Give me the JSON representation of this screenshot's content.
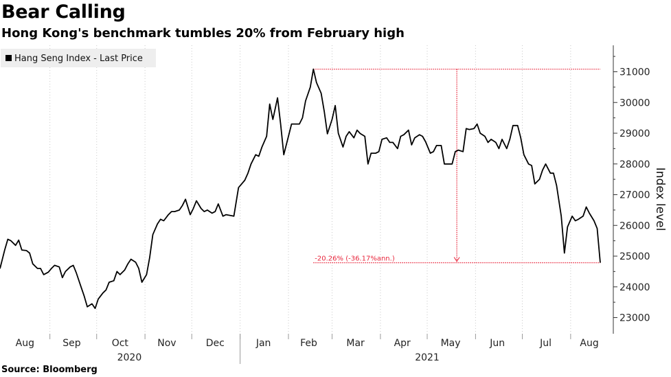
{
  "title": "Bear Calling",
  "subtitle": "Hong Kong's benchmark tumbles 20% from February high",
  "source": "Source: Bloomberg",
  "chart_data": {
    "type": "line",
    "legend": {
      "label": "Hang Seng Index - Last Price",
      "placement": "top-left"
    },
    "ylabel": "Index level",
    "ylim": [
      22500,
      31800
    ],
    "yticks": [
      23000,
      24000,
      25000,
      26000,
      27000,
      28000,
      29000,
      30000,
      31000
    ],
    "y_axis_side": "right",
    "grid": "vertical-dotted",
    "x_month_labels": [
      "Aug",
      "Sep",
      "Oct",
      "Nov",
      "Dec",
      "Jan",
      "Feb",
      "Mar",
      "Apr",
      "May",
      "Jun",
      "Jul",
      "Aug"
    ],
    "x_year_labels": [
      "2020",
      "2021"
    ],
    "colors": {
      "line": "#000000",
      "annotation": "#e8263c",
      "grid": "#c8c8c8"
    },
    "annotation": {
      "label": "-20.26% (-36.17%ann.)",
      "high": 31084,
      "low": 24786,
      "high_date": "2021-02-17",
      "low_date": "2021-08-20"
    },
    "series": [
      {
        "name": "Hang Seng Index - Last Price",
        "points": [
          [
            "2020-07-31",
            24595
          ],
          [
            "2020-08-03",
            25200
          ],
          [
            "2020-08-05",
            25550
          ],
          [
            "2020-08-07",
            25500
          ],
          [
            "2020-08-10",
            25350
          ],
          [
            "2020-08-12",
            25520
          ],
          [
            "2020-08-14",
            25200
          ],
          [
            "2020-08-17",
            25180
          ],
          [
            "2020-08-19",
            25100
          ],
          [
            "2020-08-21",
            24750
          ],
          [
            "2020-08-24",
            24600
          ],
          [
            "2020-08-26",
            24600
          ],
          [
            "2020-08-28",
            24400
          ],
          [
            "2020-08-31",
            24480
          ],
          [
            "2020-09-02",
            24600
          ],
          [
            "2020-09-04",
            24700
          ],
          [
            "2020-09-07",
            24650
          ],
          [
            "2020-09-09",
            24300
          ],
          [
            "2020-09-11",
            24500
          ],
          [
            "2020-09-14",
            24650
          ],
          [
            "2020-09-16",
            24700
          ],
          [
            "2020-09-18",
            24450
          ],
          [
            "2020-09-21",
            24000
          ],
          [
            "2020-09-23",
            23700
          ],
          [
            "2020-09-25",
            23350
          ],
          [
            "2020-09-28",
            23450
          ],
          [
            "2020-09-30",
            23300
          ],
          [
            "2020-10-02",
            23600
          ],
          [
            "2020-10-05",
            23800
          ],
          [
            "2020-10-07",
            23900
          ],
          [
            "2020-10-09",
            24150
          ],
          [
            "2020-10-12",
            24200
          ],
          [
            "2020-10-14",
            24500
          ],
          [
            "2020-10-16",
            24400
          ],
          [
            "2020-10-19",
            24550
          ],
          [
            "2020-10-21",
            24750
          ],
          [
            "2020-10-23",
            24900
          ],
          [
            "2020-10-26",
            24800
          ],
          [
            "2020-10-28",
            24600
          ],
          [
            "2020-10-30",
            24150
          ],
          [
            "2020-11-02",
            24400
          ],
          [
            "2020-11-04",
            24950
          ],
          [
            "2020-11-06",
            25700
          ],
          [
            "2020-11-09",
            26050
          ],
          [
            "2020-11-11",
            26200
          ],
          [
            "2020-11-13",
            26150
          ],
          [
            "2020-11-16",
            26350
          ],
          [
            "2020-11-18",
            26450
          ],
          [
            "2020-11-20",
            26450
          ],
          [
            "2020-11-23",
            26500
          ],
          [
            "2020-11-25",
            26650
          ],
          [
            "2020-11-27",
            26850
          ],
          [
            "2020-11-30",
            26350
          ],
          [
            "2020-12-02",
            26550
          ],
          [
            "2020-12-04",
            26800
          ],
          [
            "2020-12-07",
            26550
          ],
          [
            "2020-12-09",
            26450
          ],
          [
            "2020-12-11",
            26500
          ],
          [
            "2020-12-14",
            26400
          ],
          [
            "2020-12-16",
            26450
          ],
          [
            "2020-12-18",
            26700
          ],
          [
            "2020-12-21",
            26300
          ],
          [
            "2020-12-23",
            26350
          ],
          [
            "2020-12-28",
            26300
          ],
          [
            "2020-12-31",
            27230
          ],
          [
            "2021-01-04",
            27470
          ],
          [
            "2021-01-06",
            27700
          ],
          [
            "2021-01-08",
            28000
          ],
          [
            "2021-01-11",
            28300
          ],
          [
            "2021-01-13",
            28250
          ],
          [
            "2021-01-15",
            28550
          ],
          [
            "2021-01-18",
            28900
          ],
          [
            "2021-01-20",
            29950
          ],
          [
            "2021-01-22",
            29450
          ],
          [
            "2021-01-25",
            30150
          ],
          [
            "2021-01-27",
            29300
          ],
          [
            "2021-01-29",
            28300
          ],
          [
            "2021-02-01",
            28900
          ],
          [
            "2021-02-03",
            29300
          ],
          [
            "2021-02-05",
            29300
          ],
          [
            "2021-02-08",
            29300
          ],
          [
            "2021-02-10",
            29500
          ],
          [
            "2021-02-12",
            30050
          ],
          [
            "2021-02-15",
            30500
          ],
          [
            "2021-02-17",
            31084
          ],
          [
            "2021-02-19",
            30650
          ],
          [
            "2021-02-22",
            30300
          ],
          [
            "2021-02-24",
            29700
          ],
          [
            "2021-02-26",
            28980
          ],
          [
            "2021-03-01",
            29450
          ],
          [
            "2021-03-03",
            29900
          ],
          [
            "2021-03-05",
            29000
          ],
          [
            "2021-03-08",
            28550
          ],
          [
            "2021-03-10",
            28900
          ],
          [
            "2021-03-12",
            29050
          ],
          [
            "2021-03-15",
            28850
          ],
          [
            "2021-03-17",
            29100
          ],
          [
            "2021-03-19",
            28990
          ],
          [
            "2021-03-22",
            28900
          ],
          [
            "2021-03-24",
            28000
          ],
          [
            "2021-03-26",
            28350
          ],
          [
            "2021-03-29",
            28350
          ],
          [
            "2021-03-31",
            28400
          ],
          [
            "2021-04-02",
            28800
          ],
          [
            "2021-04-05",
            28850
          ],
          [
            "2021-04-07",
            28700
          ],
          [
            "2021-04-09",
            28700
          ],
          [
            "2021-04-12",
            28500
          ],
          [
            "2021-04-14",
            28900
          ],
          [
            "2021-04-16",
            28950
          ],
          [
            "2021-04-19",
            29100
          ],
          [
            "2021-04-21",
            28620
          ],
          [
            "2021-04-23",
            28850
          ],
          [
            "2021-04-26",
            28950
          ],
          [
            "2021-04-28",
            28900
          ],
          [
            "2021-04-30",
            28720
          ],
          [
            "2021-05-03",
            28350
          ],
          [
            "2021-05-05",
            28400
          ],
          [
            "2021-05-07",
            28600
          ],
          [
            "2021-05-10",
            28600
          ],
          [
            "2021-05-12",
            28000
          ],
          [
            "2021-05-14",
            28000
          ],
          [
            "2021-05-17",
            28000
          ],
          [
            "2021-05-19",
            28400
          ],
          [
            "2021-05-21",
            28450
          ],
          [
            "2021-05-24",
            28400
          ],
          [
            "2021-05-26",
            29150
          ],
          [
            "2021-05-28",
            29120
          ],
          [
            "2021-05-31",
            29150
          ],
          [
            "2021-06-02",
            29300
          ],
          [
            "2021-06-04",
            29000
          ],
          [
            "2021-06-07",
            28900
          ],
          [
            "2021-06-09",
            28700
          ],
          [
            "2021-06-11",
            28800
          ],
          [
            "2021-06-14",
            28700
          ],
          [
            "2021-06-16",
            28500
          ],
          [
            "2021-06-18",
            28800
          ],
          [
            "2021-06-21",
            28500
          ],
          [
            "2021-06-23",
            28800
          ],
          [
            "2021-06-25",
            29250
          ],
          [
            "2021-06-28",
            29250
          ],
          [
            "2021-06-30",
            28850
          ],
          [
            "2021-07-02",
            28300
          ],
          [
            "2021-07-05",
            28000
          ],
          [
            "2021-07-07",
            27950
          ],
          [
            "2021-07-09",
            27350
          ],
          [
            "2021-07-12",
            27500
          ],
          [
            "2021-07-14",
            27800
          ],
          [
            "2021-07-16",
            28000
          ],
          [
            "2021-07-19",
            27700
          ],
          [
            "2021-07-21",
            27700
          ],
          [
            "2021-07-23",
            27300
          ],
          [
            "2021-07-26",
            26300
          ],
          [
            "2021-07-28",
            25100
          ],
          [
            "2021-07-30",
            25950
          ],
          [
            "2021-08-02",
            26300
          ],
          [
            "2021-08-04",
            26150
          ],
          [
            "2021-08-06",
            26200
          ],
          [
            "2021-08-09",
            26300
          ],
          [
            "2021-08-11",
            26600
          ],
          [
            "2021-08-13",
            26400
          ],
          [
            "2021-08-16",
            26150
          ],
          [
            "2021-08-18",
            25900
          ],
          [
            "2021-08-20",
            24786
          ]
        ]
      }
    ]
  }
}
